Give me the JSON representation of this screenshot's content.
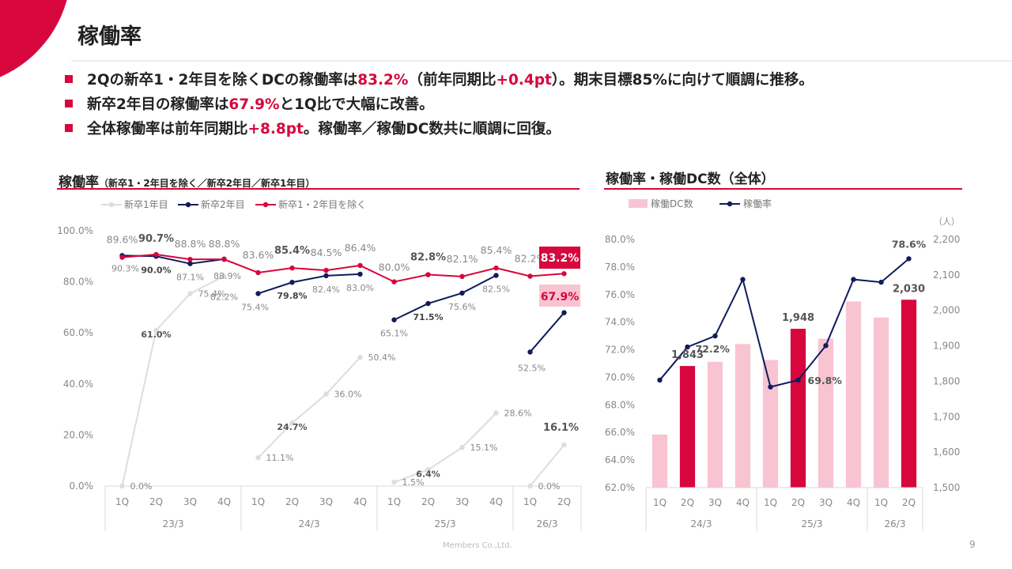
{
  "page": {
    "title": "稼働率",
    "bullets": [
      {
        "parts": [
          [
            "2Qの新卒1・2年目を除くDCの稼働率は",
            false
          ],
          [
            "83.2%",
            true
          ],
          [
            "（前年同期比",
            false
          ],
          [
            "+0.4pt",
            true
          ],
          [
            "）。期末目標85%に向けて順調に推移。",
            false
          ]
        ]
      },
      {
        "parts": [
          [
            "新卒2年目の稼働率は",
            false
          ],
          [
            "67.9%",
            true
          ],
          [
            "と1Q比で大幅に改善。",
            false
          ]
        ]
      },
      {
        "parts": [
          [
            "全体稼働率は前年同期比",
            false
          ],
          [
            "+8.8pt",
            true
          ],
          [
            "。稼働率／稼働DC数共に順調に回復。",
            false
          ]
        ]
      }
    ],
    "footer": "Members Co.,Ltd.",
    "page_number": "9"
  },
  "left_section": {
    "title": "稼働率",
    "subtitle": "（新卒1・2年目を除く／新卒2年目／新卒1年目）"
  },
  "right_section": {
    "title": "稼働率・稼働DC数（全体）"
  },
  "colors": {
    "accent": "#d7063c",
    "navy": "#0f1c5c",
    "gray_line": "#dddddd",
    "pink_bar": "#f9c4d2"
  },
  "chart_data": [
    {
      "type": "line",
      "title": "稼働率",
      "categories": [
        "1Q",
        "2Q",
        "3Q",
        "4Q",
        "1Q",
        "2Q",
        "3Q",
        "4Q",
        "1Q",
        "2Q",
        "3Q",
        "4Q",
        "1Q",
        "2Q"
      ],
      "groups": [
        {
          "label": "23/3",
          "count": 4
        },
        {
          "label": "24/3",
          "count": 4
        },
        {
          "label": "25/3",
          "count": 4
        },
        {
          "label": "26/3",
          "count": 2
        }
      ],
      "y_ticks": [
        "0.0%",
        "20.0%",
        "40.0%",
        "60.0%",
        "80.0%",
        "100.0%"
      ],
      "ylim": [
        0,
        100
      ],
      "series": [
        {
          "name": "新卒1年目",
          "color": "#dddddd",
          "segments": [
            {
              "start": 0,
              "values": [
                0.0,
                61.0,
                75.4,
                82.2
              ],
              "labels": [
                "0.0%",
                "61.0%",
                "75.4%",
                "82.2%"
              ]
            },
            {
              "start": 4,
              "values": [
                11.1,
                24.7,
                36.0,
                50.4
              ],
              "labels": [
                "11.1%",
                "24.7%",
                "36.0%",
                "50.4%"
              ]
            },
            {
              "start": 8,
              "values": [
                1.5,
                6.4,
                15.1,
                28.6
              ],
              "labels": [
                "1.5%",
                "6.4%",
                "15.1%",
                "28.6%"
              ]
            },
            {
              "start": 12,
              "values": [
                0.0,
                16.1
              ],
              "labels": [
                "0.0%",
                "16.1%"
              ]
            }
          ]
        },
        {
          "name": "新卒2年目",
          "color": "#0f1c5c",
          "segments": [
            {
              "start": 0,
              "values": [
                90.3,
                90.0,
                87.1,
                88.9
              ],
              "labels": [
                "90.3%",
                "90.0%",
                "87.1%",
                "88.9%"
              ]
            },
            {
              "start": 4,
              "values": [
                75.4,
                79.8,
                82.4,
                83.0
              ],
              "labels": [
                "75.4%",
                "79.8%",
                "82.4%",
                "83.0%"
              ]
            },
            {
              "start": 8,
              "values": [
                65.1,
                71.5,
                75.6,
                82.5
              ],
              "labels": [
                "65.1%",
                "71.5%",
                "75.6%",
                "82.5%"
              ]
            },
            {
              "start": 12,
              "values": [
                52.5,
                67.9
              ],
              "labels": [
                "52.5%",
                "67.9%"
              ]
            }
          ]
        },
        {
          "name": "新卒1・2年目を除く",
          "color": "#d7063c",
          "segments": [
            {
              "start": 0,
              "values": [
                89.6,
                90.7,
                88.8,
                88.8,
                83.6,
                85.4,
                84.5,
                86.4,
                80.0,
                82.8,
                82.1,
                85.4,
                82.2,
                83.2
              ],
              "labels": [
                "89.6%",
                "90.7%",
                "88.8%",
                "88.8%",
                "83.6%",
                "85.4%",
                "84.5%",
                "86.4%",
                "80.0%",
                "82.8%",
                "82.1%",
                "85.4%",
                "82.2%",
                "83.2%"
              ]
            }
          ]
        }
      ]
    },
    {
      "type": "bar+line",
      "title": "稼働率・稼働DC数（全体）",
      "categories": [
        "1Q",
        "2Q",
        "3Q",
        "4Q",
        "1Q",
        "2Q",
        "3Q",
        "4Q",
        "1Q",
        "2Q"
      ],
      "groups": [
        {
          "label": "24/3",
          "count": 4
        },
        {
          "label": "25/3",
          "count": 4
        },
        {
          "label": "26/3",
          "count": 2
        }
      ],
      "unit_label": "（人）",
      "bars": {
        "name": "稼働DC数",
        "values": [
          1650,
          1843,
          1855,
          1905,
          1860,
          1948,
          1920,
          2025,
          1980,
          2030
        ],
        "labels": [
          "",
          "1,843",
          "",
          "",
          "",
          "1,948",
          "",
          "",
          "",
          "2,030"
        ],
        "highlight": [
          false,
          true,
          false,
          false,
          false,
          true,
          false,
          false,
          false,
          true
        ]
      },
      "line": {
        "name": "稼働率",
        "values": [
          69.8,
          72.2,
          73.0,
          77.1,
          69.3,
          69.8,
          72.3,
          77.1,
          76.9,
          78.6
        ],
        "labels": [
          "",
          "72.2%",
          "",
          "",
          "",
          "69.8%",
          "",
          "",
          "",
          "78.6%"
        ]
      },
      "y_left_ticks": [
        "62.0%",
        "64.0%",
        "66.0%",
        "68.0%",
        "70.0%",
        "72.0%",
        "74.0%",
        "76.0%",
        "78.0%",
        "80.0%"
      ],
      "y_right_ticks": [
        "1,500",
        "1,600",
        "1,700",
        "1,800",
        "1,900",
        "2,000",
        "2,100",
        "2,200"
      ],
      "ylim_left": [
        62,
        80
      ],
      "ylim_right": [
        1500,
        2200
      ]
    }
  ]
}
